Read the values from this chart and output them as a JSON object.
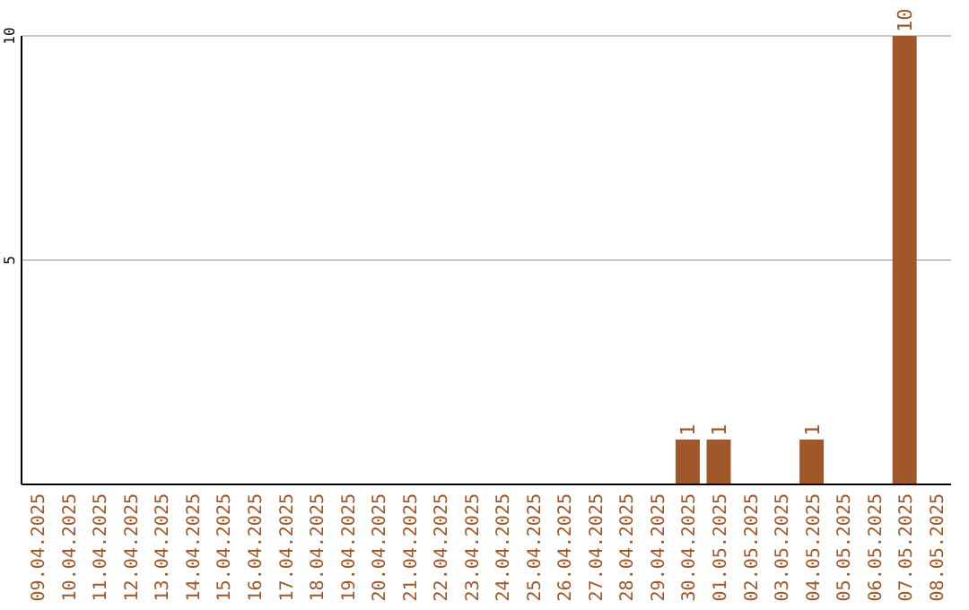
{
  "chart_data": {
    "type": "bar",
    "categories": [
      "09.04.2025",
      "10.04.2025",
      "11.04.2025",
      "12.04.2025",
      "13.04.2025",
      "14.04.2025",
      "15.04.2025",
      "16.04.2025",
      "17.04.2025",
      "18.04.2025",
      "19.04.2025",
      "20.04.2025",
      "21.04.2025",
      "22.04.2025",
      "23.04.2025",
      "24.04.2025",
      "25.04.2025",
      "26.04.2025",
      "27.04.2025",
      "28.04.2025",
      "29.04.2025",
      "30.04.2025",
      "01.05.2025",
      "02.05.2025",
      "03.05.2025",
      "04.05.2025",
      "05.05.2025",
      "06.05.2025",
      "07.05.2025",
      "08.05.2025"
    ],
    "values": [
      0,
      0,
      0,
      0,
      0,
      0,
      0,
      0,
      0,
      0,
      0,
      0,
      0,
      0,
      0,
      0,
      0,
      0,
      0,
      0,
      0,
      1,
      1,
      0,
      0,
      1,
      0,
      0,
      10,
      0
    ],
    "value_labels": [
      null,
      null,
      null,
      null,
      null,
      null,
      null,
      null,
      null,
      null,
      null,
      null,
      null,
      null,
      null,
      null,
      null,
      null,
      null,
      null,
      null,
      "1",
      "1",
      null,
      null,
      "1",
      null,
      null,
      "10",
      null
    ],
    "color": "#a0582a",
    "ylim": [
      0,
      10
    ],
    "yticks": [
      {
        "value": 0,
        "label": null
      },
      5,
      10
    ],
    "grid": "y"
  }
}
